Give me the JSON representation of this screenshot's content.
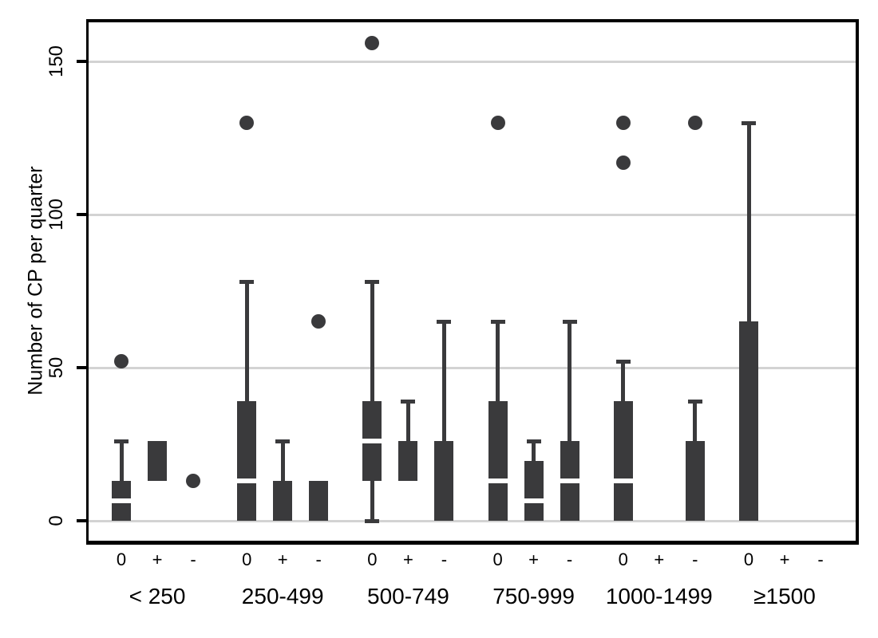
{
  "figure": {
    "background": "#ffffff",
    "colors": {
      "box": "#3a3a3c",
      "grid": "#d3d3d3",
      "axis": "#000000",
      "median_gap": "#ffffff"
    }
  },
  "chart_data": {
    "type": "box",
    "title": "",
    "ylabel": "Number of CP per quarter",
    "yticks": [
      0,
      50,
      100,
      150
    ],
    "ylim": [
      -6.5,
      163
    ],
    "grid": "horizontal-gridlines-at-yticks",
    "legend": "none",
    "sub_categories": [
      "0",
      "+",
      "-"
    ],
    "groups": [
      {
        "label": "< 250",
        "boxes": [
          {
            "sub": "0",
            "lo": 0,
            "q1": 0,
            "med": 6.5,
            "q3": 13,
            "hi": 26,
            "outliers": [
              52
            ]
          },
          {
            "sub": "+",
            "q1": 13,
            "q3": 26,
            "outliers": []
          },
          {
            "sub": "-",
            "point": 13
          }
        ]
      },
      {
        "label": "250-499",
        "boxes": [
          {
            "sub": "0",
            "q1": 0,
            "med": 13,
            "q3": 39,
            "hi": 78,
            "outliers": [
              130
            ]
          },
          {
            "sub": "+",
            "q1": 0,
            "q3": 13,
            "hi": 26,
            "outliers": []
          },
          {
            "sub": "-",
            "q1": 0,
            "q3": 13,
            "outliers": [
              65
            ]
          }
        ]
      },
      {
        "label": "500-749",
        "boxes": [
          {
            "sub": "0",
            "lo": 0,
            "q1": 13,
            "med": 26,
            "q3": 39,
            "hi": 78,
            "outliers": [
              156
            ]
          },
          {
            "sub": "+",
            "q1": 13,
            "q3": 26,
            "hi": 39,
            "outliers": []
          },
          {
            "sub": "-",
            "q1": 0,
            "q3": 26,
            "hi": 65,
            "outliers": []
          }
        ]
      },
      {
        "label": "750-999",
        "boxes": [
          {
            "sub": "0",
            "q1": 0,
            "med": 13,
            "q3": 39,
            "hi": 65,
            "outliers": [
              130
            ]
          },
          {
            "sub": "+",
            "q1": 0,
            "med": 6.5,
            "q3": 19.5,
            "hi": 26,
            "outliers": []
          },
          {
            "sub": "-",
            "q1": 0,
            "med": 13,
            "q3": 26,
            "hi": 65,
            "outliers": []
          }
        ]
      },
      {
        "label": "1000-1499",
        "boxes": [
          {
            "sub": "0",
            "q1": 0,
            "med": 13,
            "q3": 39,
            "hi": 52,
            "outliers": [
              117,
              130
            ]
          },
          {
            "sub": "+",
            "empty": true
          },
          {
            "sub": "-",
            "q1": 0,
            "q3": 26,
            "hi": 39,
            "outliers": [
              130
            ]
          }
        ]
      },
      {
        "label": "≥1500",
        "boxes": [
          {
            "sub": "0",
            "q1": 0,
            "q3": 65,
            "hi": 130,
            "outliers": []
          },
          {
            "sub": "+",
            "empty": true
          },
          {
            "sub": "-",
            "empty": true
          }
        ]
      }
    ]
  }
}
